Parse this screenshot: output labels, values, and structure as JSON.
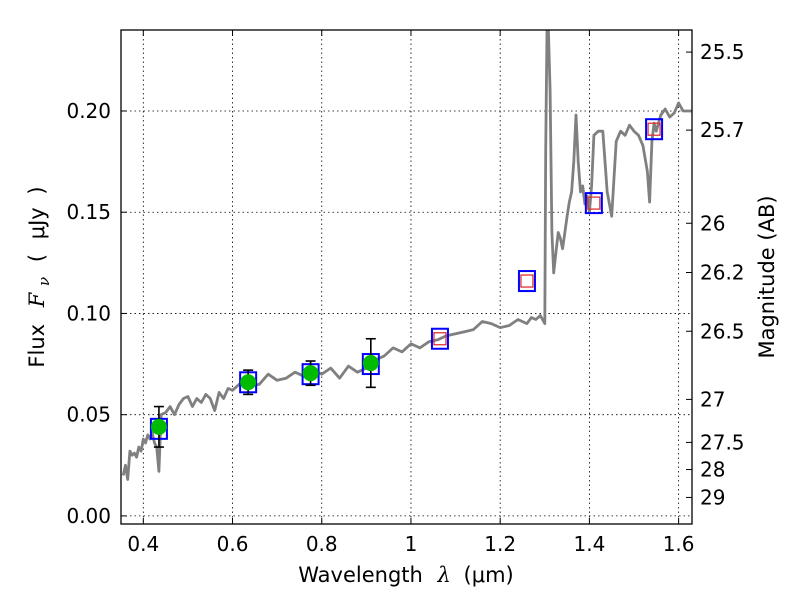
{
  "chart_data": {
    "type": "scatter",
    "xlabel": "Wavelength",
    "xlabel_symbol": "λ",
    "xlabel_unit": "(μm)",
    "ylabel": "Flux",
    "ylabel_symbol": "F",
    "ylabel_subscript": "ν",
    "ylabel_unit": "μJy",
    "ylabel_right": "Magnitude (AB)",
    "xlim": [
      0.35,
      1.63
    ],
    "ylim": [
      -0.004,
      0.24
    ],
    "grid": true,
    "x_ticks": [
      0.4,
      0.6,
      0.8,
      1.0,
      1.2,
      1.4,
      1.6
    ],
    "x_tick_labels": [
      "0.4",
      "0.6",
      "0.8",
      "1",
      "1.2",
      "1.4",
      "1.6"
    ],
    "y_ticks": [
      0.0,
      0.05,
      0.1,
      0.15,
      0.2
    ],
    "y_tick_labels": [
      "0.00",
      "0.05",
      "0.10",
      "0.15",
      "0.20"
    ],
    "right_ticks": [
      {
        "label": "25.5",
        "mag": 25.5
      },
      {
        "label": "25.7",
        "mag": 25.7
      },
      {
        "label": "26",
        "mag": 26.0
      },
      {
        "label": "26.2",
        "mag": 26.2
      },
      {
        "label": "26.5",
        "mag": 26.5
      },
      {
        "label": "27",
        "mag": 27.0
      },
      {
        "label": "27.5",
        "mag": 27.5
      },
      {
        "label": "28",
        "mag": 28.0
      },
      {
        "label": "29",
        "mag": 29.0
      }
    ],
    "colors": {
      "spectrum": "#808080",
      "observed": "#00bb00",
      "model_box": "#0000ff",
      "upper": "#dd3333",
      "errorbar": "#000000"
    },
    "series": [
      {
        "name": "Model spectrum",
        "style": "line",
        "x": [
          0.355,
          0.36,
          0.365,
          0.37,
          0.375,
          0.38,
          0.385,
          0.39,
          0.395,
          0.4,
          0.405,
          0.41,
          0.415,
          0.42,
          0.425,
          0.43,
          0.435,
          0.44,
          0.45,
          0.46,
          0.47,
          0.48,
          0.49,
          0.5,
          0.51,
          0.52,
          0.53,
          0.54,
          0.55,
          0.56,
          0.57,
          0.58,
          0.59,
          0.6,
          0.62,
          0.64,
          0.66,
          0.68,
          0.7,
          0.72,
          0.74,
          0.76,
          0.78,
          0.8,
          0.82,
          0.84,
          0.86,
          0.88,
          0.9,
          0.92,
          0.94,
          0.96,
          0.98,
          1.0,
          1.02,
          1.04,
          1.06,
          1.08,
          1.1,
          1.12,
          1.14,
          1.16,
          1.18,
          1.2,
          1.22,
          1.24,
          1.26,
          1.27,
          1.28,
          1.29,
          1.3,
          1.302,
          1.305,
          1.308,
          1.312,
          1.316,
          1.32,
          1.325,
          1.33,
          1.335,
          1.34,
          1.35,
          1.355,
          1.36,
          1.365,
          1.37,
          1.375,
          1.38,
          1.385,
          1.39,
          1.395,
          1.4,
          1.405,
          1.41,
          1.42,
          1.43,
          1.44,
          1.45,
          1.46,
          1.47,
          1.48,
          1.49,
          1.5,
          1.51,
          1.52,
          1.53,
          1.535,
          1.54,
          1.545,
          1.55,
          1.56,
          1.57,
          1.58,
          1.59,
          1.6,
          1.61,
          1.62,
          1.63
        ],
        "y": [
          0.02,
          0.025,
          0.018,
          0.032,
          0.03,
          0.031,
          0.029,
          0.034,
          0.032,
          0.038,
          0.036,
          0.04,
          0.038,
          0.041,
          0.036,
          0.034,
          0.022,
          0.05,
          0.051,
          0.054,
          0.05,
          0.055,
          0.058,
          0.059,
          0.054,
          0.058,
          0.056,
          0.06,
          0.058,
          0.052,
          0.061,
          0.058,
          0.063,
          0.062,
          0.066,
          0.064,
          0.065,
          0.07,
          0.067,
          0.068,
          0.071,
          0.069,
          0.072,
          0.07,
          0.073,
          0.068,
          0.074,
          0.071,
          0.073,
          0.077,
          0.079,
          0.083,
          0.081,
          0.085,
          0.083,
          0.086,
          0.087,
          0.089,
          0.09,
          0.091,
          0.092,
          0.096,
          0.095,
          0.093,
          0.094,
          0.097,
          0.095,
          0.098,
          0.097,
          0.099,
          0.095,
          0.18,
          0.24,
          0.24,
          0.21,
          0.14,
          0.12,
          0.13,
          0.14,
          0.137,
          0.132,
          0.148,
          0.155,
          0.16,
          0.175,
          0.198,
          0.175,
          0.16,
          0.163,
          0.154,
          0.158,
          0.15,
          0.163,
          0.188,
          0.19,
          0.19,
          0.16,
          0.148,
          0.185,
          0.19,
          0.188,
          0.193,
          0.19,
          0.188,
          0.183,
          0.17,
          0.155,
          0.185,
          0.194,
          0.19,
          0.198,
          0.201,
          0.197,
          0.199,
          0.204,
          0.2,
          0.2,
          0.2
        ]
      },
      {
        "name": "Observed photometry",
        "style": "filled-circle",
        "x": [
          0.435,
          0.635,
          0.775,
          0.91
        ],
        "y": [
          0.044,
          0.066,
          0.0705,
          0.0755
        ],
        "yerr": [
          0.01,
          0.006,
          0.006,
          0.012
        ]
      },
      {
        "name": "Model band flux",
        "style": "open-square",
        "x": [
          0.435,
          0.635,
          0.775,
          0.91,
          1.065,
          1.26,
          1.41,
          1.545
        ],
        "y": [
          0.043,
          0.066,
          0.07,
          0.075,
          0.0875,
          0.116,
          0.1545,
          0.191
        ]
      },
      {
        "name": "Upper limits",
        "style": "open-square-small",
        "x": [
          1.065,
          1.26,
          1.41,
          1.545
        ],
        "y": [
          0.0875,
          0.116,
          0.1545,
          0.191
        ]
      }
    ]
  }
}
